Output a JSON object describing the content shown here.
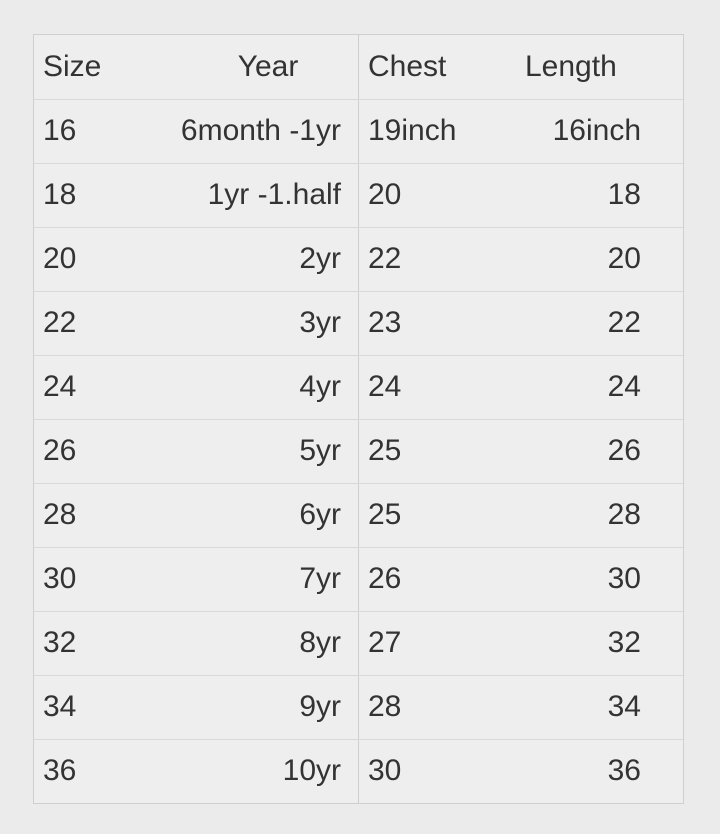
{
  "table": {
    "header": [
      "Size",
      "Year",
      "Chest",
      "Length"
    ],
    "rows": [
      [
        "16",
        "6month -1yr",
        "19inch",
        "16inch"
      ],
      [
        "18",
        "1yr -1.half",
        "20",
        "18"
      ],
      [
        "20",
        "2yr",
        "22",
        "20"
      ],
      [
        "22",
        "3yr",
        "23",
        "22"
      ],
      [
        "24",
        "4yr",
        "24",
        "24"
      ],
      [
        "26",
        "5yr",
        "25",
        "26"
      ],
      [
        "28",
        "6yr",
        "25",
        "28"
      ],
      [
        "30",
        "7yr",
        "26",
        "30"
      ],
      [
        "32",
        "8yr",
        "27",
        "32"
      ],
      [
        "34",
        "9yr",
        "28",
        "34"
      ],
      [
        "36",
        "10yr",
        "30",
        "36"
      ]
    ]
  }
}
